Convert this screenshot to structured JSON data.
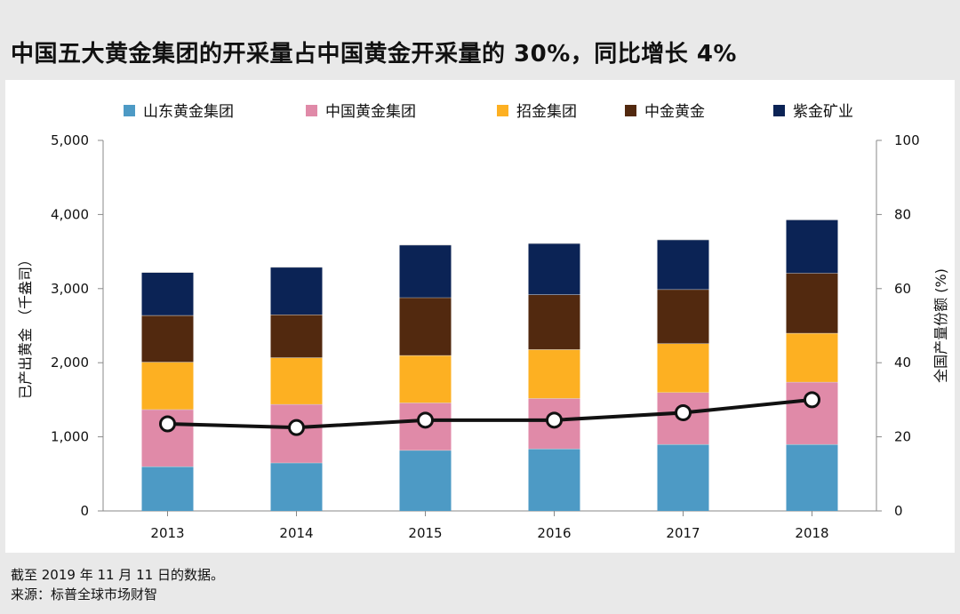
{
  "title": "中国五大黄金集团的开采量占中国黄金开采量的 30%，同比增长 4%",
  "footnote": {
    "date_note": "截至 2019 年 11 月 11 日的数据。",
    "source": "来源：标普全球市场财智"
  },
  "chart_data": {
    "type": "bar",
    "stacked": true,
    "categories": [
      "2013",
      "2014",
      "2015",
      "2016",
      "2017",
      "2018"
    ],
    "series": [
      {
        "name": "山东黄金集团",
        "color": "#4d9ac5",
        "values": [
          600,
          650,
          820,
          840,
          900,
          900
        ]
      },
      {
        "name": "中国黄金集团",
        "color": "#e08aa8",
        "values": [
          770,
          790,
          640,
          680,
          700,
          840
        ]
      },
      {
        "name": "招金集团",
        "color": "#fdb022",
        "values": [
          640,
          630,
          640,
          660,
          660,
          660
        ]
      },
      {
        "name": "中金黄金",
        "color": "#52290f",
        "values": [
          630,
          580,
          780,
          740,
          730,
          810
        ]
      },
      {
        "name": "紫金矿业",
        "color": "#0b2355",
        "values": [
          580,
          640,
          710,
          690,
          670,
          720
        ]
      }
    ],
    "line": {
      "axis": "right",
      "color": "#111111",
      "values": [
        23.5,
        22.5,
        24.5,
        24.5,
        26.5,
        30
      ]
    },
    "ylabel": "已产出黄金 （千盎司）",
    "y2label": "全国产量份额 (%)",
    "ylim": [
      0,
      5000
    ],
    "y2lim": [
      0,
      100
    ],
    "yticks": [
      "0",
      "1,000",
      "2,000",
      "3,000",
      "4,000",
      "5,000"
    ],
    "y2ticks": [
      "0",
      "20",
      "40",
      "60",
      "80",
      "100"
    ],
    "legend_position": "top",
    "grid": false
  }
}
